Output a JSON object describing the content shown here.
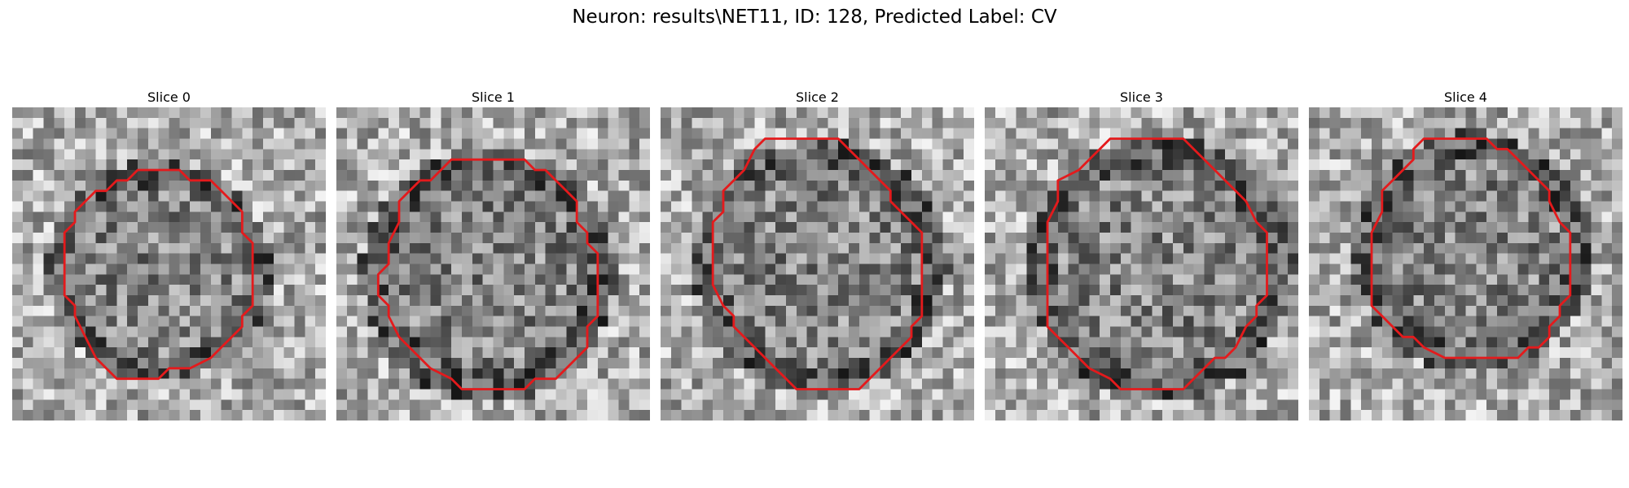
{
  "figure": {
    "title": "Neuron: results\\NET11, ID: 128, Predicted Label: CV",
    "contour_color": "#e41a1c",
    "grid_size": 30
  },
  "slices": [
    {
      "title": "Slice 0",
      "contour": [
        [
          12,
          6
        ],
        [
          16,
          6
        ],
        [
          17,
          7
        ],
        [
          19,
          7
        ],
        [
          20,
          8
        ],
        [
          21,
          9
        ],
        [
          22,
          10
        ],
        [
          22,
          12
        ],
        [
          23,
          13
        ],
        [
          23,
          19
        ],
        [
          22,
          20
        ],
        [
          22,
          21
        ],
        [
          21,
          22
        ],
        [
          20,
          23
        ],
        [
          19,
          24
        ],
        [
          17,
          25
        ],
        [
          16,
          25
        ],
        [
          15,
          25
        ],
        [
          14,
          26
        ],
        [
          10,
          26
        ],
        [
          9,
          25
        ],
        [
          8,
          24
        ],
        [
          7,
          22
        ],
        [
          6,
          20
        ],
        [
          6,
          19
        ],
        [
          5,
          18
        ],
        [
          5,
          12
        ],
        [
          6,
          11
        ],
        [
          6,
          10
        ],
        [
          7,
          9
        ],
        [
          8,
          8
        ],
        [
          9,
          8
        ],
        [
          10,
          7
        ],
        [
          11,
          7
        ]
      ]
    },
    {
      "title": "Slice 1",
      "contour": [
        [
          11,
          5
        ],
        [
          18,
          5
        ],
        [
          19,
          6
        ],
        [
          20,
          6
        ],
        [
          21,
          7
        ],
        [
          22,
          8
        ],
        [
          23,
          9
        ],
        [
          23,
          11
        ],
        [
          24,
          12
        ],
        [
          24,
          13
        ],
        [
          25,
          14
        ],
        [
          25,
          20
        ],
        [
          24,
          21
        ],
        [
          24,
          23
        ],
        [
          23,
          24
        ],
        [
          22,
          25
        ],
        [
          21,
          26
        ],
        [
          19,
          26
        ],
        [
          18,
          27
        ],
        [
          17,
          27
        ],
        [
          12,
          27
        ],
        [
          11,
          26
        ],
        [
          9,
          25
        ],
        [
          8,
          24
        ],
        [
          7,
          23
        ],
        [
          6,
          22
        ],
        [
          5,
          20
        ],
        [
          5,
          19
        ],
        [
          4,
          18
        ],
        [
          4,
          16
        ],
        [
          5,
          15
        ],
        [
          5,
          13
        ],
        [
          6,
          11
        ],
        [
          6,
          9
        ],
        [
          7,
          8
        ],
        [
          8,
          7
        ],
        [
          9,
          7
        ],
        [
          10,
          6
        ]
      ]
    },
    {
      "title": "Slice 2",
      "contour": [
        [
          10,
          3
        ],
        [
          17,
          3
        ],
        [
          18,
          4
        ],
        [
          19,
          5
        ],
        [
          20,
          6
        ],
        [
          21,
          7
        ],
        [
          22,
          8
        ],
        [
          22,
          9
        ],
        [
          23,
          10
        ],
        [
          24,
          11
        ],
        [
          25,
          12
        ],
        [
          25,
          19
        ],
        [
          25,
          20
        ],
        [
          24,
          21
        ],
        [
          24,
          22
        ],
        [
          23,
          23
        ],
        [
          22,
          24
        ],
        [
          21,
          25
        ],
        [
          20,
          26
        ],
        [
          19,
          27
        ],
        [
          13,
          27
        ],
        [
          12,
          26
        ],
        [
          11,
          25
        ],
        [
          10,
          24
        ],
        [
          9,
          23
        ],
        [
          8,
          22
        ],
        [
          7,
          21
        ],
        [
          7,
          20
        ],
        [
          6,
          19
        ],
        [
          5,
          17
        ],
        [
          5,
          11
        ],
        [
          6,
          10
        ],
        [
          6,
          8
        ],
        [
          7,
          7
        ],
        [
          8,
          6
        ],
        [
          9,
          4
        ]
      ]
    },
    {
      "title": "Slice 3",
      "contour": [
        [
          12,
          3
        ],
        [
          19,
          3
        ],
        [
          20,
          4
        ],
        [
          21,
          5
        ],
        [
          22,
          6
        ],
        [
          23,
          7
        ],
        [
          24,
          8
        ],
        [
          25,
          9
        ],
        [
          26,
          11
        ],
        [
          27,
          12
        ],
        [
          27,
          18
        ],
        [
          26,
          19
        ],
        [
          26,
          20
        ],
        [
          25,
          21
        ],
        [
          24,
          23
        ],
        [
          23,
          24
        ],
        [
          22,
          24
        ],
        [
          21,
          25
        ],
        [
          20,
          26
        ],
        [
          19,
          27
        ],
        [
          13,
          27
        ],
        [
          12,
          26
        ],
        [
          10,
          25
        ],
        [
          9,
          24
        ],
        [
          8,
          23
        ],
        [
          7,
          22
        ],
        [
          6,
          21
        ],
        [
          6,
          20
        ],
        [
          6,
          11
        ],
        [
          7,
          9
        ],
        [
          7,
          7
        ],
        [
          9,
          6
        ],
        [
          10,
          5
        ],
        [
          11,
          4
        ]
      ]
    },
    {
      "title": "Slice 4",
      "contour": [
        [
          11,
          3
        ],
        [
          17,
          3
        ],
        [
          18,
          4
        ],
        [
          19,
          4
        ],
        [
          20,
          5
        ],
        [
          21,
          6
        ],
        [
          22,
          7
        ],
        [
          23,
          8
        ],
        [
          23,
          9
        ],
        [
          24,
          11
        ],
        [
          25,
          12
        ],
        [
          25,
          18
        ],
        [
          24,
          19
        ],
        [
          24,
          20
        ],
        [
          23,
          21
        ],
        [
          23,
          22
        ],
        [
          22,
          23
        ],
        [
          21,
          23
        ],
        [
          20,
          24
        ],
        [
          14,
          24
        ],
        [
          13,
          24
        ],
        [
          11,
          23
        ],
        [
          10,
          22
        ],
        [
          9,
          22
        ],
        [
          8,
          21
        ],
        [
          7,
          20
        ],
        [
          6,
          19
        ],
        [
          6,
          18
        ],
        [
          6,
          12
        ],
        [
          7,
          10
        ],
        [
          7,
          8
        ],
        [
          8,
          7
        ],
        [
          9,
          6
        ],
        [
          10,
          5
        ],
        [
          10,
          4
        ]
      ]
    }
  ]
}
